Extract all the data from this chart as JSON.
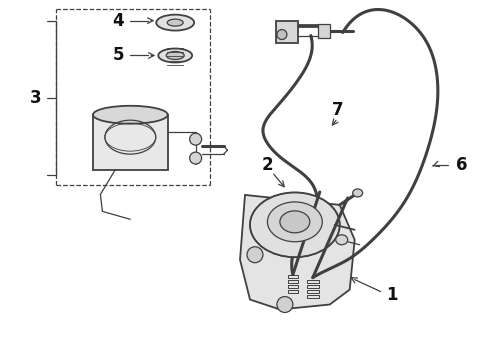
{
  "bg_color": "#ffffff",
  "line_color": "#404040",
  "label_color": "#111111",
  "figsize": [
    4.9,
    3.6
  ],
  "dpi": 100,
  "lw_hose": 2.2,
  "lw_part": 1.3,
  "lw_thin": 0.9
}
